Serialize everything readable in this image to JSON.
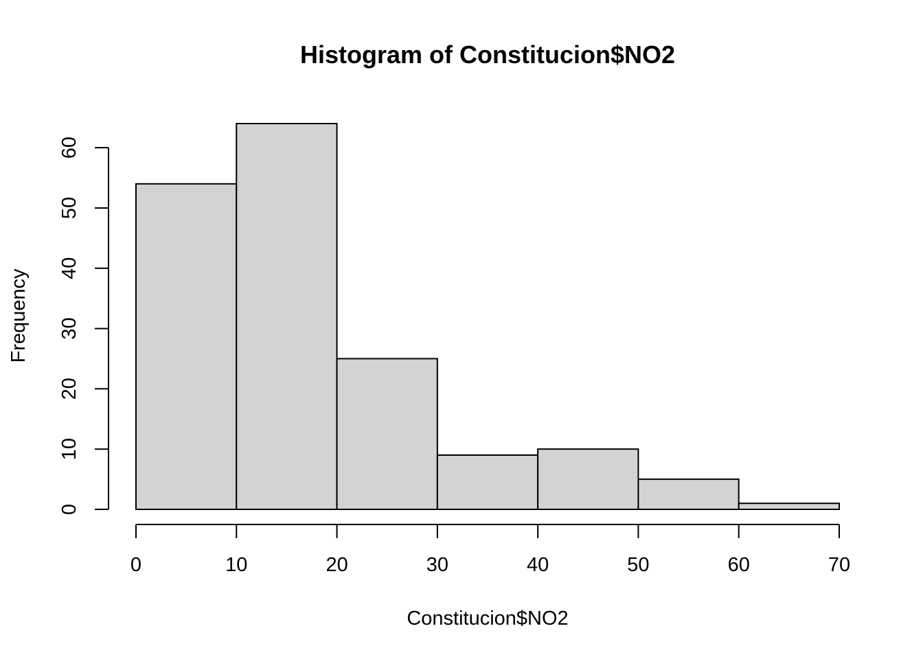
{
  "chart_data": {
    "type": "bar",
    "title": "Histogram of Constitucion$NO2",
    "xlabel": "Constitucion$NO2",
    "ylabel": "Frequency",
    "bins": [
      {
        "from": 0,
        "to": 10,
        "count": 54
      },
      {
        "from": 10,
        "to": 20,
        "count": 64
      },
      {
        "from": 20,
        "to": 30,
        "count": 25
      },
      {
        "from": 30,
        "to": 40,
        "count": 9
      },
      {
        "from": 40,
        "to": 50,
        "count": 10
      },
      {
        "from": 50,
        "to": 60,
        "count": 5
      },
      {
        "from": 60,
        "to": 70,
        "count": 1
      }
    ],
    "xlim": [
      0,
      70
    ],
    "ylim": [
      0,
      64
    ],
    "xticks": [
      "0",
      "10",
      "20",
      "30",
      "40",
      "50",
      "60",
      "70"
    ],
    "yticks": [
      "0",
      "10",
      "20",
      "30",
      "40",
      "50",
      "60"
    ],
    "grid": false,
    "colors": {
      "bar_fill": "#d3d3d3",
      "bar_stroke": "#000000"
    }
  }
}
